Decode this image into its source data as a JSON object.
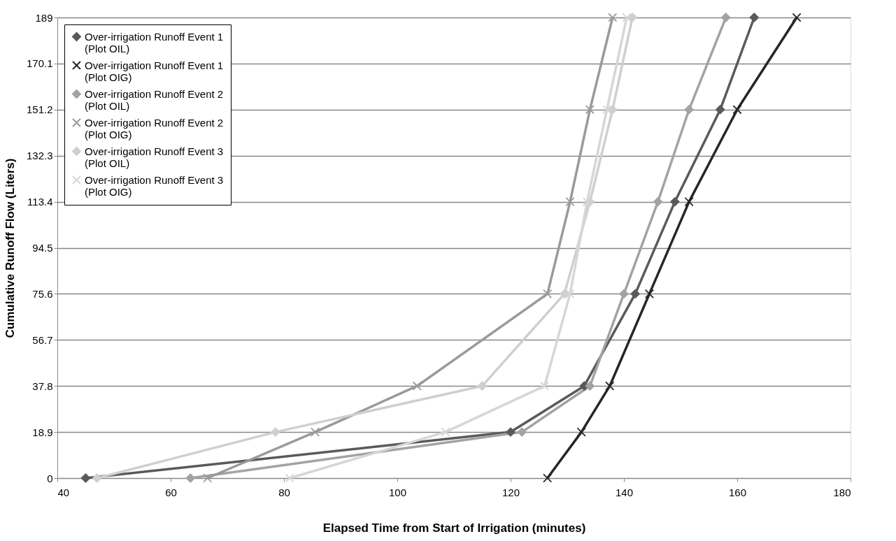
{
  "chart_data": {
    "type": "line",
    "xlabel": "Elapsed Time from Start of Irrigation (minutes)",
    "ylabel": "Cumulative Runoff Flow (Liters)",
    "xlim": [
      40,
      180
    ],
    "xticks": [
      40,
      60,
      80,
      100,
      120,
      140,
      160,
      180
    ],
    "ylim": [
      0,
      189
    ],
    "yticks": [
      0,
      18.9,
      37.8,
      56.7,
      75.6,
      94.5,
      113.4,
      132.3,
      151.2,
      170.1,
      189
    ],
    "grid": "y",
    "legend": "top left",
    "series": [
      {
        "name": "Over-irrigation Runoff Event 1\n(Plot OIL)",
        "color": "#5a5a5a",
        "marker": "diamond",
        "x": [
          45,
          120,
          133,
          142,
          149,
          157,
          163
        ],
        "values": [
          0,
          18.9,
          37.8,
          75.6,
          113.4,
          151.2,
          189
        ]
      },
      {
        "name": "Over-irrigation Runoff Event 1\n(Plot OIG)",
        "color": "#262626",
        "marker": "cross",
        "x": [
          126.5,
          132.5,
          137.5,
          144.5,
          151.5,
          160,
          170.5
        ],
        "values": [
          0,
          18.9,
          37.8,
          75.6,
          113.4,
          151.2,
          189
        ]
      },
      {
        "name": "Over-irrigation Runoff Event 2\n(Plot OIL)",
        "color": "#a3a3a3",
        "marker": "diamond",
        "x": [
          63.5,
          122,
          134,
          140,
          146,
          151.5,
          158
        ],
        "values": [
          0,
          18.9,
          37.8,
          75.6,
          113.4,
          151.2,
          189
        ]
      },
      {
        "name": "Over-irrigation Runoff Event 2\n(Plot OIG)",
        "color": "#9a9a9a",
        "marker": "cross",
        "x": [
          66.5,
          85.5,
          103.5,
          126.5,
          130.5,
          134,
          138
        ],
        "values": [
          0,
          18.9,
          37.8,
          75.6,
          113.4,
          151.2,
          189
        ]
      },
      {
        "name": "Over-irrigation Runoff Event 3\n(Plot OIL)",
        "color": "#cfcfcf",
        "marker": "diamond",
        "x": [
          47,
          78.5,
          115,
          129.5,
          134,
          138,
          141.5
        ],
        "values": [
          0,
          18.9,
          37.8,
          75.6,
          113.4,
          151.2,
          189
        ]
      },
      {
        "name": "Over-irrigation Runoff Event 3\n(Plot OIG)",
        "color": "#d6d6d6",
        "marker": "cross",
        "x": [
          81,
          108.5,
          126,
          130.5,
          133.5,
          137,
          140.5
        ],
        "values": [
          0,
          18.9,
          37.8,
          75.6,
          113.4,
          151.2,
          189
        ]
      }
    ]
  }
}
